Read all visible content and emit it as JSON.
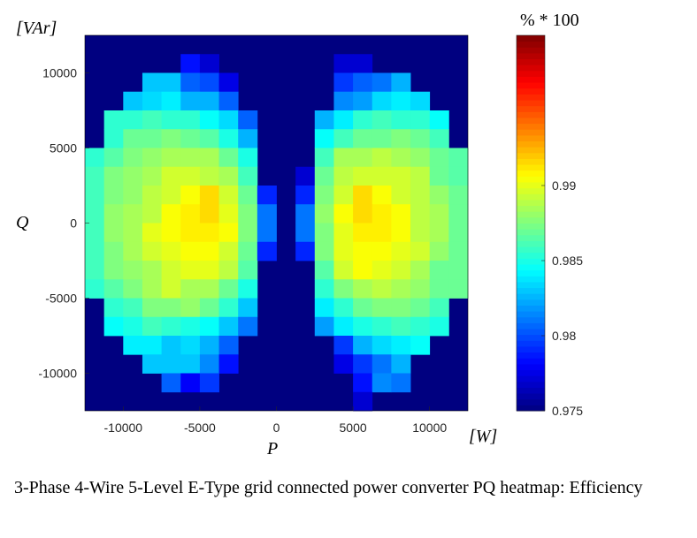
{
  "chart_data": {
    "type": "heatmap",
    "title": "",
    "xlabel": "P",
    "ylabel": "Q",
    "x_unit": "[W]",
    "y_unit": "[VAr]",
    "colorbar_label": "% * 100",
    "xlim": [
      -12500,
      12500
    ],
    "ylim": [
      -12500,
      12500
    ],
    "x_ticks": [
      -10000,
      -5000,
      0,
      5000,
      10000
    ],
    "x_tick_labels": [
      "-10000",
      "-5000",
      "0",
      "5000",
      "10000"
    ],
    "y_ticks": [
      10000,
      5000,
      0,
      -5000,
      -10000
    ],
    "y_tick_labels": [
      "10000",
      "5000",
      "0",
      "-5000",
      "-10000"
    ],
    "color_range": [
      0.975,
      1.0
    ],
    "colorbar_ticks": [
      0.975,
      0.98,
      0.985,
      0.99
    ],
    "colorbar_tick_labels": [
      "0.975",
      "0.98",
      "0.985",
      "0.99"
    ],
    "colormap": "jet",
    "background_color": "#000080",
    "grid": false,
    "cell_size": 1250,
    "x_centers": [
      -11875,
      -10625,
      -9375,
      -8125,
      -6875,
      -5625,
      -4375,
      -3125,
      -1875,
      -625,
      625,
      1875,
      3125,
      4375,
      5625,
      6875,
      8125,
      9375,
      10625,
      11875
    ],
    "y_centers": [
      11875,
      10625,
      9375,
      8125,
      6875,
      5625,
      4375,
      3125,
      1875,
      625,
      -625,
      -1875,
      -3125,
      -4375,
      -5625,
      -6875,
      -8125,
      -9375,
      -10625,
      -11875
    ],
    "values": [
      [
        null,
        null,
        null,
        null,
        null,
        null,
        null,
        null,
        null,
        null,
        null,
        null,
        null,
        null,
        null,
        null,
        null,
        null,
        null,
        null
      ],
      [
        null,
        null,
        null,
        null,
        null,
        0.9785,
        0.977,
        null,
        null,
        null,
        null,
        null,
        null,
        0.977,
        0.977,
        null,
        null,
        null,
        null,
        null
      ],
      [
        null,
        null,
        null,
        0.983,
        0.983,
        0.9805,
        0.98,
        0.9775,
        null,
        null,
        null,
        null,
        null,
        0.9795,
        0.9805,
        0.981,
        0.9825,
        null,
        null,
        null
      ],
      [
        null,
        null,
        0.983,
        0.9835,
        0.984,
        0.9825,
        0.9825,
        0.9805,
        null,
        null,
        null,
        null,
        null,
        0.9815,
        0.982,
        0.9835,
        0.984,
        0.9835,
        null,
        null
      ],
      [
        null,
        0.9855,
        0.9855,
        0.986,
        0.9855,
        0.9855,
        0.9845,
        0.9835,
        0.9805,
        null,
        null,
        null,
        0.9825,
        0.984,
        0.9855,
        0.986,
        0.9855,
        0.9855,
        0.9845,
        null
      ],
      [
        null,
        0.9855,
        0.987,
        0.987,
        0.9875,
        0.987,
        0.9865,
        0.985,
        0.9825,
        null,
        null,
        null,
        0.9845,
        0.986,
        0.987,
        0.987,
        0.9875,
        0.987,
        0.986,
        null
      ],
      [
        0.9855,
        0.9865,
        0.9875,
        0.988,
        0.9885,
        0.9885,
        0.9885,
        0.987,
        0.985,
        null,
        null,
        null,
        0.986,
        0.9885,
        0.9885,
        0.989,
        0.9885,
        0.988,
        0.987,
        0.9865
      ],
      [
        0.986,
        0.9875,
        0.988,
        0.9885,
        0.9895,
        0.9895,
        0.989,
        0.9885,
        0.986,
        null,
        null,
        0.977,
        0.987,
        0.989,
        0.9895,
        0.9895,
        0.9895,
        0.989,
        0.987,
        0.9865
      ],
      [
        0.986,
        0.9875,
        0.988,
        0.989,
        0.9895,
        0.9905,
        0.9915,
        0.9895,
        0.987,
        0.979,
        null,
        0.979,
        0.9875,
        0.9895,
        0.9915,
        0.9905,
        0.9895,
        0.989,
        0.988,
        0.987
      ],
      [
        0.986,
        0.988,
        0.9885,
        0.989,
        0.9905,
        0.991,
        0.9915,
        0.99,
        0.9875,
        0.981,
        null,
        0.981,
        0.988,
        0.9905,
        0.9915,
        0.991,
        0.9905,
        0.989,
        0.9885,
        0.987
      ],
      [
        0.986,
        0.988,
        0.9885,
        0.99,
        0.9905,
        0.991,
        0.991,
        0.9905,
        0.9875,
        0.981,
        null,
        0.981,
        0.9875,
        0.99,
        0.991,
        0.991,
        0.9905,
        0.989,
        0.9885,
        0.987
      ],
      [
        0.986,
        0.9875,
        0.9885,
        0.9895,
        0.99,
        0.9905,
        0.9905,
        0.9895,
        0.987,
        0.979,
        null,
        0.979,
        0.9875,
        0.99,
        0.9905,
        0.9905,
        0.99,
        0.9895,
        0.988,
        0.987
      ],
      [
        0.986,
        0.9875,
        0.988,
        0.9885,
        0.9895,
        0.99,
        0.99,
        0.989,
        0.9865,
        null,
        null,
        null,
        0.9865,
        0.9895,
        0.9905,
        0.99,
        0.9895,
        0.9885,
        0.987,
        0.987
      ],
      [
        0.9855,
        0.9865,
        0.9875,
        0.9885,
        0.9895,
        0.9885,
        0.9885,
        0.987,
        0.985,
        null,
        null,
        null,
        0.9855,
        0.9875,
        0.9885,
        0.989,
        0.9885,
        0.988,
        0.987,
        0.987
      ],
      [
        null,
        0.9855,
        0.986,
        0.9875,
        0.9875,
        0.988,
        0.987,
        0.9855,
        0.983,
        null,
        null,
        null,
        0.984,
        0.9855,
        0.987,
        0.9875,
        0.9875,
        0.987,
        0.986,
        null
      ],
      [
        null,
        0.9845,
        0.985,
        0.986,
        0.9855,
        0.985,
        0.9845,
        0.983,
        0.981,
        null,
        null,
        null,
        0.982,
        0.984,
        0.985,
        0.9855,
        0.986,
        0.9855,
        0.985,
        null
      ],
      [
        null,
        null,
        0.984,
        0.984,
        0.983,
        0.9835,
        0.9825,
        0.9805,
        null,
        null,
        null,
        null,
        null,
        0.9795,
        0.9825,
        0.9835,
        0.984,
        0.9845,
        null,
        null
      ],
      [
        null,
        null,
        null,
        0.983,
        0.983,
        0.983,
        0.9815,
        0.9785,
        null,
        null,
        null,
        null,
        null,
        0.9775,
        0.9795,
        0.981,
        0.9825,
        null,
        null,
        null
      ],
      [
        null,
        null,
        null,
        null,
        0.9805,
        0.978,
        0.9795,
        null,
        null,
        null,
        null,
        null,
        null,
        null,
        0.9785,
        0.9815,
        0.981,
        null,
        null,
        null
      ],
      [
        null,
        null,
        null,
        null,
        null,
        null,
        null,
        null,
        null,
        null,
        null,
        null,
        null,
        null,
        0.977,
        null,
        null,
        null,
        null,
        null
      ]
    ]
  },
  "caption": "3-Phase 4-Wire 5-Level E-Type grid connected power converter PQ heatmap: Efficiency"
}
